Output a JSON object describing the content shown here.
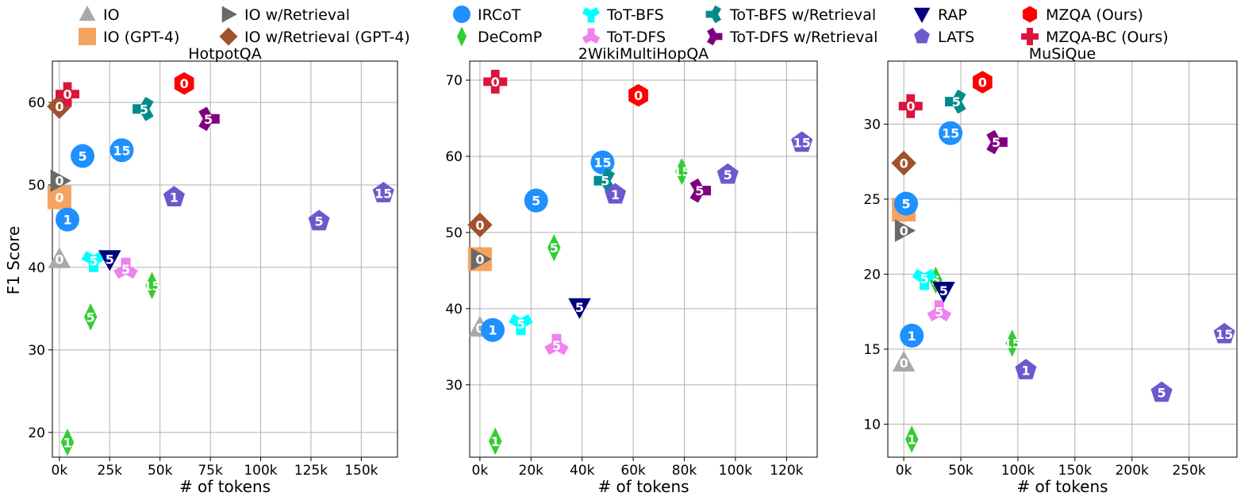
{
  "chart_data": {
    "type": "scatter",
    "ylabel": "F1 Score",
    "xlabel": "# of tokens",
    "legend": {
      "placement": "top",
      "entries": [
        {
          "key": "io",
          "label": "IO",
          "marker": "triangle-up",
          "color": "#a9a9a9"
        },
        {
          "key": "io_gpt4",
          "label": "IO (GPT-4)",
          "marker": "square",
          "color": "#f4a460"
        },
        {
          "key": "io_ret",
          "label": "IO w/Retrieval",
          "marker": "triangle-right",
          "color": "#696969"
        },
        {
          "key": "io_ret_gpt4",
          "label": "IO w/Retrieval (GPT-4)",
          "marker": "diamond",
          "color": "#a0522d"
        },
        {
          "key": "ircot",
          "label": "IRCoT",
          "marker": "circle",
          "color": "#1e90ff"
        },
        {
          "key": "decomp",
          "label": "DeComP",
          "marker": "thin-diamond",
          "color": "#32cd32"
        },
        {
          "key": "tot_bfs",
          "label": "ToT-BFS",
          "marker": "tri-down",
          "color": "#00ffff"
        },
        {
          "key": "tot_dfs",
          "label": "ToT-DFS",
          "marker": "tri-up",
          "color": "#ee82ee"
        },
        {
          "key": "tot_bfs_ret",
          "label": "ToT-BFS w/Retrieval",
          "marker": "tri-left",
          "color": "#008b8b"
        },
        {
          "key": "tot_dfs_ret",
          "label": "ToT-DFS w/Retrieval",
          "marker": "tri-right",
          "color": "#800080"
        },
        {
          "key": "rap",
          "label": "RAP",
          "marker": "triangle-down",
          "color": "#000080"
        },
        {
          "key": "lats",
          "label": "LATS",
          "marker": "pentagon",
          "color": "#6a5acd"
        },
        {
          "key": "mzqa",
          "label": "MZQA (Ours)",
          "marker": "hexagon",
          "color": "#ff0000"
        },
        {
          "key": "mzqa_bc",
          "label": "MZQA-BC (Ours)",
          "marker": "plus",
          "color": "#dc143c"
        }
      ]
    },
    "panels": [
      {
        "title": "HotpotQA",
        "xlim": [
          -3500,
          168000
        ],
        "ylim": [
          17,
          65
        ],
        "xticks": [
          0,
          25000,
          50000,
          75000,
          100000,
          125000,
          150000
        ],
        "xtick_labels": [
          "0k",
          "25k",
          "50k",
          "75k",
          "100k",
          "125k",
          "150k"
        ],
        "yticks": [
          20,
          30,
          40,
          50,
          60
        ],
        "ytick_labels": [
          "20",
          "30",
          "40",
          "50",
          "60"
        ],
        "points": [
          {
            "series": "io",
            "x": 0,
            "y": 41,
            "label": "0"
          },
          {
            "series": "io_gpt4",
            "x": 0,
            "y": 48.5,
            "label": "0"
          },
          {
            "series": "io_ret",
            "x": 0,
            "y": 50.5,
            "label": "0"
          },
          {
            "series": "io_ret_gpt4",
            "x": 0,
            "y": 59.5,
            "label": "0"
          },
          {
            "series": "ircot",
            "x": 4000,
            "y": 45.8,
            "label": "1"
          },
          {
            "series": "ircot",
            "x": 11500,
            "y": 53.5,
            "label": "5"
          },
          {
            "series": "ircot",
            "x": 31000,
            "y": 54.2,
            "label": "15"
          },
          {
            "series": "decomp",
            "x": 4000,
            "y": 18.8,
            "label": "1"
          },
          {
            "series": "decomp",
            "x": 15500,
            "y": 34,
            "label": "5"
          },
          {
            "series": "decomp",
            "x": 46000,
            "y": 37.8,
            "label": "15"
          },
          {
            "series": "tot_bfs",
            "x": 17000,
            "y": 40.8,
            "label": "5"
          },
          {
            "series": "tot_dfs",
            "x": 33000,
            "y": 39.8,
            "label": "5"
          },
          {
            "series": "tot_bfs_ret",
            "x": 42000,
            "y": 59.2,
            "label": "5"
          },
          {
            "series": "tot_dfs_ret",
            "x": 74000,
            "y": 58,
            "label": "5"
          },
          {
            "series": "rap",
            "x": 25000,
            "y": 41,
            "label": "5"
          },
          {
            "series": "lats",
            "x": 57000,
            "y": 48.5,
            "label": "1"
          },
          {
            "series": "lats",
            "x": 129000,
            "y": 45.6,
            "label": "5"
          },
          {
            "series": "lats",
            "x": 161000,
            "y": 49,
            "label": "15"
          },
          {
            "series": "mzqa",
            "x": 62000,
            "y": 62.3,
            "label": "0"
          },
          {
            "series": "mzqa_bc",
            "x": 4000,
            "y": 61,
            "label": "0"
          }
        ]
      },
      {
        "title": "2WikiMultiHopQA",
        "xlim": [
          -4000,
          132000
        ],
        "ylim": [
          20.5,
          72.5
        ],
        "xticks": [
          0,
          20000,
          40000,
          60000,
          80000,
          100000,
          120000
        ],
        "xtick_labels": [
          "0k",
          "20k",
          "40k",
          "60k",
          "80k",
          "100k",
          "120k"
        ],
        "yticks": [
          30,
          40,
          50,
          60,
          70
        ],
        "ytick_labels": [
          "30",
          "40",
          "50",
          "60",
          "70"
        ],
        "points": [
          {
            "series": "io",
            "x": 0,
            "y": 37.5,
            "label": "0"
          },
          {
            "series": "io_gpt4",
            "x": 0,
            "y": 46.5,
            "label": "0"
          },
          {
            "series": "io_ret",
            "x": 0,
            "y": 46.5,
            "label": "0"
          },
          {
            "series": "io_ret_gpt4",
            "x": 0,
            "y": 51,
            "label": "0"
          },
          {
            "series": "ircot",
            "x": 5000,
            "y": 37.2,
            "label": "1"
          },
          {
            "series": "ircot",
            "x": 22000,
            "y": 54.2,
            "label": "5"
          },
          {
            "series": "ircot",
            "x": 48000,
            "y": 59.2,
            "label": "15"
          },
          {
            "series": "decomp",
            "x": 6000,
            "y": 22.6,
            "label": "1"
          },
          {
            "series": "decomp",
            "x": 29000,
            "y": 48,
            "label": "5"
          },
          {
            "series": "decomp",
            "x": 79000,
            "y": 58,
            "label": "15"
          },
          {
            "series": "tot_bfs",
            "x": 16000,
            "y": 38,
            "label": "5"
          },
          {
            "series": "tot_dfs",
            "x": 30000,
            "y": 35.2,
            "label": "5"
          },
          {
            "series": "tot_bfs_ret",
            "x": 49000,
            "y": 56.8,
            "label": "5"
          },
          {
            "series": "tot_dfs_ret",
            "x": 86000,
            "y": 55.5,
            "label": "5"
          },
          {
            "series": "rap",
            "x": 39000,
            "y": 40.2,
            "label": "5"
          },
          {
            "series": "lats",
            "x": 53000,
            "y": 55,
            "label": "1"
          },
          {
            "series": "lats",
            "x": 97000,
            "y": 57.6,
            "label": "5"
          },
          {
            "series": "lats",
            "x": 126000,
            "y": 61.8,
            "label": "15"
          },
          {
            "series": "mzqa",
            "x": 62000,
            "y": 68,
            "label": "0"
          },
          {
            "series": "mzqa_bc",
            "x": 6000,
            "y": 69.8,
            "label": "0"
          }
        ]
      },
      {
        "title": "MuSiQue",
        "xlim": [
          -14000,
          292000
        ],
        "ylim": [
          7.8,
          34.2
        ],
        "xticks": [
          0,
          50000,
          100000,
          150000,
          200000,
          250000
        ],
        "xtick_labels": [
          "0k",
          "50k",
          "100k",
          "150k",
          "200k",
          "250k"
        ],
        "yticks": [
          10,
          15,
          20,
          25,
          30
        ],
        "ytick_labels": [
          "10",
          "15",
          "20",
          "25",
          "30"
        ],
        "points": [
          {
            "series": "io",
            "x": 0,
            "y": 14.1,
            "label": "0"
          },
          {
            "series": "io_gpt4",
            "x": 0,
            "y": 24.3,
            "label": "0"
          },
          {
            "series": "io_ret",
            "x": 0,
            "y": 22.9,
            "label": "0"
          },
          {
            "series": "io_ret_gpt4",
            "x": 0,
            "y": 27.4,
            "label": "0"
          },
          {
            "series": "ircot",
            "x": 7000,
            "y": 15.9,
            "label": "1"
          },
          {
            "series": "ircot",
            "x": 2000,
            "y": 24.7,
            "label": "5"
          },
          {
            "series": "ircot",
            "x": 41000,
            "y": 29.4,
            "label": "15"
          },
          {
            "series": "decomp",
            "x": 7000,
            "y": 9,
            "label": "1"
          },
          {
            "series": "decomp",
            "x": 28000,
            "y": 19.6,
            "label": "5"
          },
          {
            "series": "decomp",
            "x": 95000,
            "y": 15.4,
            "label": "15"
          },
          {
            "series": "tot_bfs",
            "x": 18000,
            "y": 19.7,
            "label": "5"
          },
          {
            "series": "tot_dfs",
            "x": 31000,
            "y": 17.5,
            "label": "5"
          },
          {
            "series": "tot_bfs_ret",
            "x": 46000,
            "y": 31.5,
            "label": "5"
          },
          {
            "series": "tot_dfs_ret",
            "x": 81000,
            "y": 28.8,
            "label": "5"
          },
          {
            "series": "rap",
            "x": 35000,
            "y": 18.9,
            "label": "5"
          },
          {
            "series": "lats",
            "x": 107000,
            "y": 13.6,
            "label": "1"
          },
          {
            "series": "lats",
            "x": 226000,
            "y": 12.1,
            "label": "5"
          },
          {
            "series": "lats",
            "x": 281000,
            "y": 16,
            "label": "15"
          },
          {
            "series": "mzqa",
            "x": 69000,
            "y": 32.8,
            "label": "0"
          },
          {
            "series": "mzqa_bc",
            "x": 6000,
            "y": 31.2,
            "label": "0"
          }
        ]
      }
    ]
  }
}
